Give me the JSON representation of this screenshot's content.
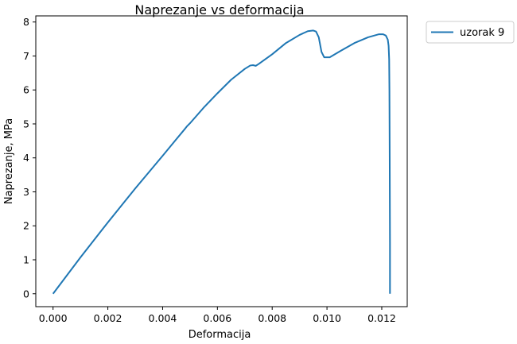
{
  "chart_data": {
    "type": "line",
    "title": "Naprezanje vs deformacija",
    "xlabel": "Deformacija",
    "ylabel": "Naprezanje, MPa",
    "xlim": [
      -0.00063,
      0.01293
    ],
    "ylim": [
      -0.38,
      8.18
    ],
    "xticks": [
      0.0,
      0.002,
      0.004,
      0.006,
      0.008,
      0.01,
      0.012
    ],
    "xtick_labels": [
      "0.000",
      "0.002",
      "0.004",
      "0.006",
      "0.008",
      "0.010",
      "0.012"
    ],
    "yticks": [
      0,
      1,
      2,
      3,
      4,
      5,
      6,
      7,
      8
    ],
    "ytick_labels": [
      "0",
      "1",
      "2",
      "3",
      "4",
      "5",
      "6",
      "7",
      "8"
    ],
    "grid": false,
    "legend": "outside-top-right",
    "series": [
      {
        "name": "uzorak 9",
        "color": "#1f77b4",
        "x": [
          0.0,
          0.001,
          0.002,
          0.003,
          0.004,
          0.0045,
          0.0048,
          0.0049,
          0.005,
          0.0055,
          0.006,
          0.0065,
          0.007,
          0.0072,
          0.0073,
          0.0074,
          0.0075,
          0.008,
          0.0085,
          0.009,
          0.0093,
          0.0095,
          0.0096,
          0.0097,
          0.0098,
          0.0099,
          0.0101,
          0.0105,
          0.011,
          0.0115,
          0.0119,
          0.01205,
          0.01215,
          0.01222,
          0.01225,
          0.01227,
          0.01228,
          0.01229,
          0.0123,
          0.0123
        ],
        "y": [
          0.0,
          1.07,
          2.1,
          3.1,
          4.06,
          4.55,
          4.84,
          4.94,
          5.02,
          5.48,
          5.9,
          6.3,
          6.62,
          6.72,
          6.73,
          6.71,
          6.76,
          7.05,
          7.38,
          7.62,
          7.73,
          7.75,
          7.72,
          7.55,
          7.12,
          6.96,
          6.96,
          7.15,
          7.38,
          7.55,
          7.64,
          7.64,
          7.6,
          7.48,
          7.3,
          6.9,
          6.0,
          4.0,
          1.5,
          0.0
        ]
      }
    ]
  }
}
